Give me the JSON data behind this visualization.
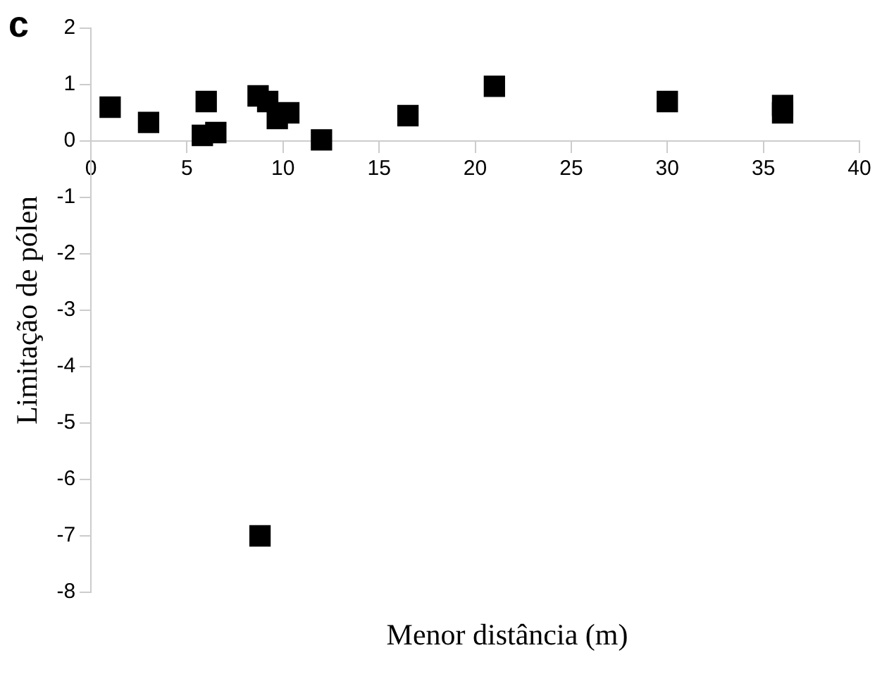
{
  "chart_data": {
    "type": "scatter",
    "xlabel": "Menor distância  (m)",
    "ylabel": "Limitação de pólen",
    "annotations": [
      "c"
    ],
    "x": [
      1,
      3,
      5.8,
      6,
      6.5,
      8.7,
      9.2,
      9.7,
      10.3,
      12,
      16.5,
      21,
      30,
      36,
      36,
      8.8
    ],
    "series": [
      {
        "color": "#000000",
        "values": [
          0.6,
          0.33,
          0.1,
          0.7,
          0.15,
          0.8,
          0.7,
          0.4,
          0.5,
          0.02,
          0.45,
          0.97,
          0.7,
          0.63,
          0.5,
          -7
        ]
      }
    ],
    "marker": "square",
    "grid": false,
    "legend": false,
    "xlim": [
      0,
      40
    ],
    "xticks": [
      0,
      5,
      10,
      15,
      20,
      25,
      30,
      35,
      40
    ],
    "ylim": [
      -8,
      2
    ],
    "yticks": [
      -8,
      -7,
      -6,
      -5,
      -4,
      -3,
      -2,
      -1,
      0,
      1,
      2
    ]
  }
}
